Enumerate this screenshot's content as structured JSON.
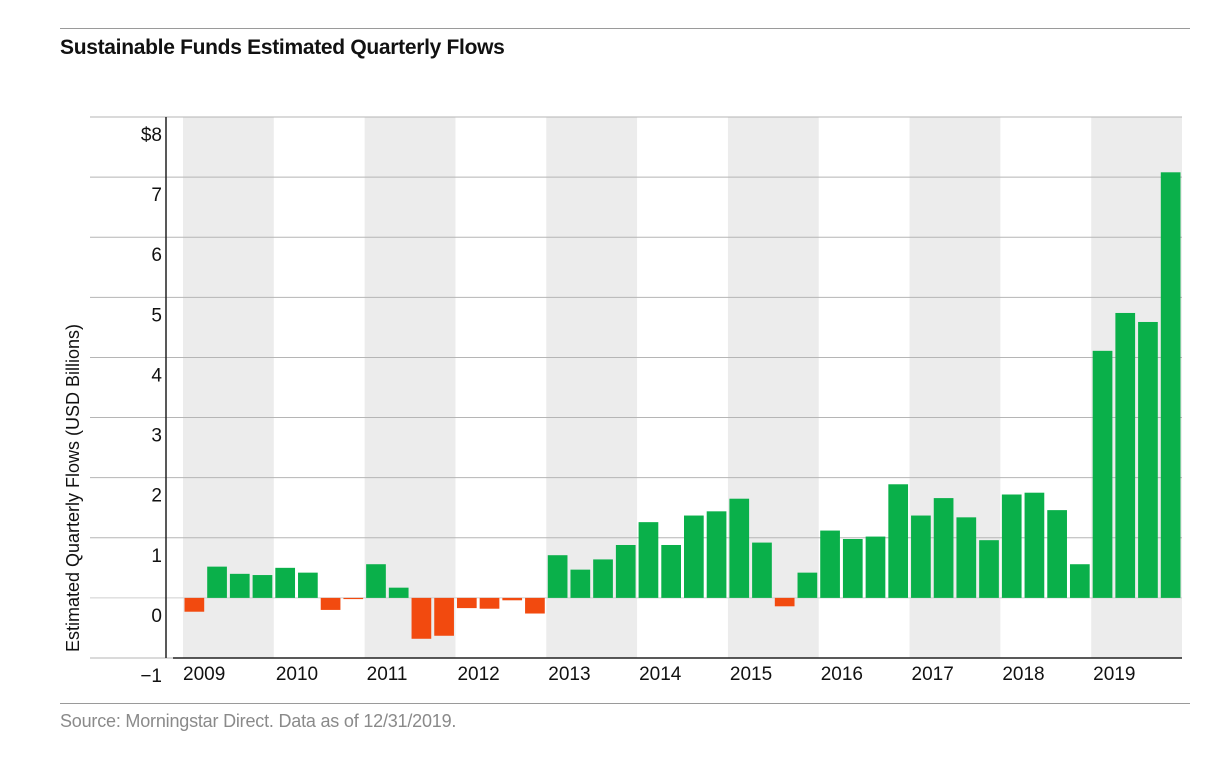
{
  "title": "Sustainable Funds Estimated Quarterly Flows",
  "source": "Source: Morningstar Direct. Data as of 12/31/2019.",
  "colors": {
    "positive": "#0ab04a",
    "negative": "#f24a0f",
    "band": "#ececec",
    "grid": "#b5b5b5"
  },
  "chart_data": {
    "type": "bar",
    "ylabel": "Estimated Quarterly Flows (USD Billions)",
    "ylim": [
      -1,
      8
    ],
    "y_ticks": [
      {
        "value": 8,
        "label": "$8"
      },
      {
        "value": 7,
        "label": "7"
      },
      {
        "value": 6,
        "label": "6"
      },
      {
        "value": 5,
        "label": "5"
      },
      {
        "value": 4,
        "label": "4"
      },
      {
        "value": 3,
        "label": "3"
      },
      {
        "value": 2,
        "label": "2"
      },
      {
        "value": 1,
        "label": "1"
      },
      {
        "value": 0,
        "label": "0"
      },
      {
        "value": -1,
        "label": "−1"
      }
    ],
    "years": [
      "2009",
      "2010",
      "2011",
      "2012",
      "2013",
      "2014",
      "2015",
      "2016",
      "2017",
      "2018",
      "2019"
    ],
    "values": [
      -0.23,
      0.52,
      0.4,
      0.38,
      0.5,
      0.42,
      -0.2,
      -0.02,
      0.56,
      0.17,
      -0.68,
      -0.63,
      -0.17,
      -0.18,
      -0.04,
      -0.26,
      0.71,
      0.47,
      0.64,
      0.88,
      1.26,
      0.88,
      1.37,
      1.44,
      1.65,
      0.92,
      -0.14,
      0.42,
      1.12,
      0.98,
      1.02,
      1.89,
      1.37,
      1.66,
      1.34,
      0.96,
      1.72,
      1.75,
      1.46,
      0.56,
      4.11,
      4.74,
      4.59,
      7.08
    ],
    "grid": true,
    "legend": "none"
  }
}
